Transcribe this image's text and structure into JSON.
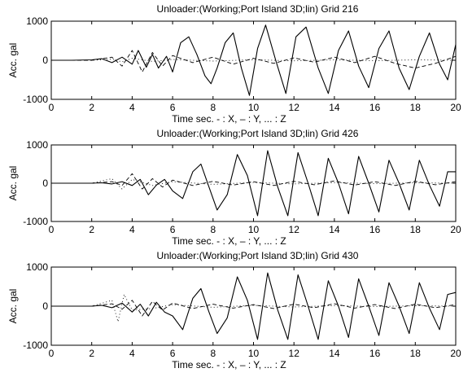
{
  "chart_data": [
    {
      "type": "line",
      "title": "Unloader:(Working;Port Island 3D;lin)   Grid 216",
      "xlabel": "Time  sec.  - : X, – : Y, ... : Z",
      "ylabel": "Acc. gal",
      "xlim": [
        0,
        20
      ],
      "ylim": [
        -1000,
        1000
      ],
      "xticks": [
        "0",
        "2",
        "4",
        "6",
        "8",
        "10",
        "12",
        "14",
        "16",
        "18",
        "20"
      ],
      "yticks": [
        "1000",
        "0",
        "-1000"
      ],
      "grid": false,
      "series": [
        {
          "style": "solid",
          "x": [
            0,
            1,
            2,
            2.5,
            3,
            3.5,
            4,
            4.3,
            4.7,
            5,
            5.3,
            5.7,
            6,
            6.4,
            6.8,
            7.2,
            7.6,
            7.9,
            8.2,
            8.6,
            9,
            9.4,
            9.8,
            10.2,
            10.6,
            11.1,
            11.6,
            12.1,
            12.6,
            13.2,
            13.7,
            14.2,
            14.7,
            15.2,
            15.7,
            16.2,
            16.7,
            17.2,
            17.7,
            18.2,
            18.7,
            19.2,
            19.6,
            20
          ],
          "y": [
            0,
            0,
            10,
            40,
            -60,
            80,
            -100,
            250,
            -180,
            150,
            -200,
            100,
            -300,
            450,
            600,
            150,
            -400,
            -600,
            -200,
            450,
            700,
            -200,
            -900,
            300,
            900,
            0,
            -850,
            600,
            850,
            -200,
            -850,
            250,
            750,
            -150,
            -700,
            300,
            750,
            -200,
            -750,
            100,
            700,
            -100,
            -500,
            400
          ]
        },
        {
          "style": "dashed",
          "x": [
            0,
            2,
            3,
            3.5,
            4,
            4.5,
            5,
            5.5,
            6,
            7,
            8,
            9,
            10,
            11,
            12,
            13,
            14,
            15,
            16,
            17,
            18,
            19,
            20
          ],
          "y": [
            0,
            0,
            80,
            -150,
            250,
            -300,
            200,
            -150,
            120,
            -60,
            80,
            -100,
            50,
            -80,
            60,
            -50,
            80,
            -60,
            100,
            -80,
            -200,
            -80,
            100
          ]
        },
        {
          "style": "dotted",
          "x": [
            0,
            2,
            3,
            3.5,
            4,
            5,
            6,
            8,
            10,
            12,
            14,
            16,
            18,
            20
          ],
          "y": [
            0,
            0,
            30,
            -40,
            50,
            -30,
            20,
            -20,
            15,
            -15,
            10,
            -10,
            10,
            0
          ]
        }
      ]
    },
    {
      "type": "line",
      "title": "Unloader:(Working;Port Island 3D;lin)   Grid 426",
      "xlabel": "Time  sec.  - : X, – : Y, ... : Z",
      "ylabel": "Acc. gal",
      "xlim": [
        0,
        20
      ],
      "ylim": [
        -1000,
        1000
      ],
      "xticks": [
        "0",
        "2",
        "4",
        "6",
        "8",
        "10",
        "12",
        "14",
        "16",
        "18",
        "20"
      ],
      "yticks": [
        "1000",
        "0",
        "-1000"
      ],
      "grid": false,
      "series": [
        {
          "style": "solid",
          "x": [
            0,
            1,
            2,
            2.5,
            3,
            3.5,
            4,
            4.4,
            4.8,
            5.2,
            5.6,
            6,
            6.5,
            7,
            7.4,
            7.8,
            8.2,
            8.7,
            9.2,
            9.7,
            10.2,
            10.7,
            11.2,
            11.7,
            12.2,
            12.7,
            13.2,
            13.7,
            14.2,
            14.7,
            15.2,
            15.7,
            16.2,
            16.7,
            17.2,
            17.7,
            18.2,
            18.7,
            19.2,
            19.6,
            20
          ],
          "y": [
            0,
            0,
            0,
            10,
            -20,
            40,
            -60,
            100,
            -300,
            -50,
            100,
            -200,
            -400,
            300,
            500,
            -100,
            -700,
            -300,
            750,
            200,
            -850,
            850,
            -100,
            -850,
            800,
            0,
            -850,
            650,
            0,
            -800,
            700,
            0,
            -750,
            600,
            0,
            -700,
            600,
            -50,
            -600,
            300,
            300
          ]
        },
        {
          "style": "dashed",
          "x": [
            0,
            2,
            3,
            3.5,
            4,
            4.5,
            5,
            5.5,
            6,
            7,
            8,
            9,
            10,
            11,
            12,
            13,
            14,
            15,
            16,
            17,
            18,
            19,
            20
          ],
          "y": [
            0,
            0,
            40,
            -60,
            250,
            -150,
            120,
            -100,
            80,
            -60,
            50,
            -50,
            40,
            -60,
            50,
            -40,
            60,
            -50,
            40,
            -60,
            50,
            -40,
            40
          ]
        },
        {
          "style": "dotted",
          "x": [
            0,
            2,
            3,
            3.5,
            4,
            5,
            6,
            8,
            10,
            12,
            14,
            16,
            18,
            20
          ],
          "y": [
            0,
            0,
            120,
            -150,
            100,
            -60,
            40,
            -30,
            20,
            -20,
            15,
            -10,
            10,
            0
          ]
        }
      ]
    },
    {
      "type": "line",
      "title": "Unloader:(Working;Port Island 3D;lin)   Grid 430",
      "xlabel": "Time  sec.  - : X, – : Y, ... : Z",
      "ylabel": "Acc. gal",
      "xlim": [
        0,
        20
      ],
      "ylim": [
        -1000,
        1000
      ],
      "xticks": [
        "0",
        "2",
        "4",
        "6",
        "8",
        "10",
        "12",
        "14",
        "16",
        "18",
        "20"
      ],
      "yticks": [
        "1000",
        "0",
        "-1000"
      ],
      "grid": false,
      "series": [
        {
          "style": "solid",
          "x": [
            0,
            1,
            2,
            2.5,
            3,
            3.5,
            4,
            4.4,
            4.8,
            5.2,
            5.6,
            6,
            6.5,
            7,
            7.4,
            7.8,
            8.2,
            8.7,
            9.2,
            9.7,
            10.2,
            10.7,
            11.2,
            11.7,
            12.2,
            12.7,
            13.2,
            13.7,
            14.2,
            14.7,
            15.2,
            15.7,
            16.2,
            16.7,
            17.2,
            17.7,
            18.2,
            18.7,
            19.2,
            19.6,
            20
          ],
          "y": [
            0,
            0,
            0,
            20,
            -40,
            80,
            -150,
            50,
            -250,
            100,
            -150,
            -250,
            -600,
            200,
            450,
            -150,
            -700,
            -300,
            750,
            150,
            -850,
            850,
            -100,
            -850,
            800,
            0,
            -850,
            650,
            0,
            -800,
            700,
            0,
            -750,
            600,
            0,
            -700,
            600,
            -50,
            -600,
            300,
            350
          ]
        },
        {
          "style": "dashed",
          "x": [
            0,
            2,
            3,
            3.5,
            4,
            4.5,
            5,
            5.5,
            6,
            7,
            8,
            9,
            10,
            11,
            12,
            13,
            14,
            15,
            16,
            17,
            18,
            19,
            20
          ],
          "y": [
            0,
            0,
            60,
            -80,
            150,
            -250,
            120,
            -100,
            80,
            -60,
            50,
            -50,
            40,
            -60,
            50,
            -40,
            60,
            -50,
            40,
            -60,
            50,
            -40,
            40
          ]
        },
        {
          "style": "dotted",
          "x": [
            0,
            2,
            3,
            3.3,
            3.6,
            4,
            5,
            6,
            8,
            10,
            12,
            14,
            16,
            18,
            20
          ],
          "y": [
            0,
            0,
            150,
            -400,
            300,
            -100,
            -60,
            40,
            -30,
            20,
            -20,
            15,
            -10,
            10,
            0
          ]
        }
      ]
    }
  ]
}
